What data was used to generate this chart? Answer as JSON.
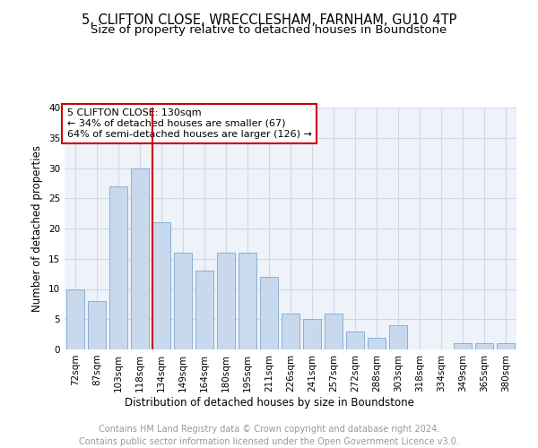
{
  "title_line1": "5, CLIFTON CLOSE, WRECCLESHAM, FARNHAM, GU10 4TP",
  "title_line2": "Size of property relative to detached houses in Boundstone",
  "xlabel": "Distribution of detached houses by size in Boundstone",
  "ylabel": "Number of detached properties",
  "categories": [
    "72sqm",
    "87sqm",
    "103sqm",
    "118sqm",
    "134sqm",
    "149sqm",
    "164sqm",
    "180sqm",
    "195sqm",
    "211sqm",
    "226sqm",
    "241sqm",
    "257sqm",
    "272sqm",
    "288sqm",
    "303sqm",
    "318sqm",
    "334sqm",
    "349sqm",
    "365sqm",
    "380sqm"
  ],
  "values": [
    10,
    8,
    27,
    30,
    21,
    16,
    13,
    16,
    16,
    12,
    6,
    5,
    6,
    3,
    2,
    4,
    0,
    0,
    1,
    1,
    1
  ],
  "bar_color": "#c8d9ee",
  "bar_edge_color": "#8ab0d4",
  "vline_x_index": 4,
  "vline_color": "#cc0000",
  "annotation_text": "5 CLIFTON CLOSE: 130sqm\n← 34% of detached houses are smaller (67)\n64% of semi-detached houses are larger (126) →",
  "annotation_box_color": "#ffffff",
  "annotation_box_edge": "#cc0000",
  "ylim": [
    0,
    40
  ],
  "yticks": [
    0,
    5,
    10,
    15,
    20,
    25,
    30,
    35,
    40
  ],
  "footer_line1": "Contains HM Land Registry data © Crown copyright and database right 2024.",
  "footer_line2": "Contains public sector information licensed under the Open Government Licence v3.0.",
  "grid_color": "#d0d8e8",
  "background_color": "#eef2f9",
  "title_fontsize": 10.5,
  "subtitle_fontsize": 9.5,
  "axis_label_fontsize": 8.5,
  "tick_fontsize": 7.5,
  "annotation_fontsize": 8,
  "footer_fontsize": 7,
  "fig_width": 6.0,
  "fig_height": 5.0
}
